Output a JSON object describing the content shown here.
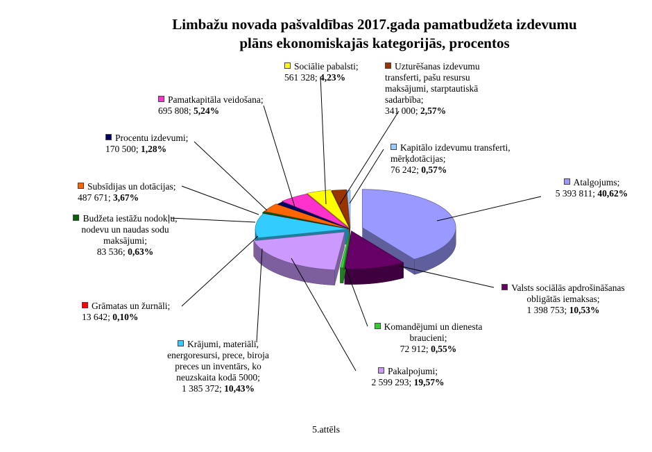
{
  "title_lines": [
    "Limbažu novada pašvaldības 2017.gada pamatbudžeta izdevumu",
    "plāns ekonomiskajās kategorijās, procentos"
  ],
  "caption": "5.attēls",
  "chart_data": {
    "type": "pie",
    "title": "Limbažu novada pašvaldības 2017.gada pamatbudžeta izdevumu plāns ekonomiskajās kategorijās, procentos",
    "three_d": true,
    "exploded": true,
    "legend": "none (data labels with leader lines)",
    "slices": [
      {
        "name": "Atalgojums",
        "value": 5393811,
        "value_text": "5 393 811",
        "percent": 40.62,
        "percent_text": "40,62%",
        "color": "#9999ff"
      },
      {
        "name": "Valsts sociālās apdrošināšanas obligātās iemaksas",
        "value": 1398753,
        "value_text": "1 398 753",
        "percent": 10.53,
        "percent_text": "10,53%",
        "color": "#660066"
      },
      {
        "name": "Komandējumi un dienesta braucieni",
        "value": 72912,
        "value_text": "72 912",
        "percent": 0.55,
        "percent_text": "0,55%",
        "color": "#33cc33"
      },
      {
        "name": "Pakalpojumi",
        "value": 2599293,
        "value_text": "2 599 293",
        "percent": 19.57,
        "percent_text": "19,57%",
        "color": "#cc99ff"
      },
      {
        "name": "Krājumi, materiāli, energoresursi, prece, biroja preces un inventārs, ko neuzskaita kodā 5000",
        "value": 1385372,
        "value_text": "1 385 372",
        "percent": 10.43,
        "percent_text": "10,43%",
        "color": "#33ccff"
      },
      {
        "name": "Grāmatas un žurnāli",
        "value": 13642,
        "value_text": "13 642",
        "percent": 0.1,
        "percent_text": "0,10%",
        "color": "#ff0000"
      },
      {
        "name": "Budžeta iestāžu nodokļu, nodevu un naudas sodu maksājumi",
        "value": 83536,
        "value_text": "83 536",
        "percent": 0.63,
        "percent_text": "0,63%",
        "color": "#006600"
      },
      {
        "name": "Subsīdijas un dotācijas",
        "value": 487671,
        "value_text": "487 671",
        "percent": 3.67,
        "percent_text": "3,67%",
        "color": "#ff6600"
      },
      {
        "name": "Procentu izdevumi",
        "value": 170500,
        "value_text": "170 500",
        "percent": 1.28,
        "percent_text": "1,28%",
        "color": "#000066"
      },
      {
        "name": "Pamatkapitāla veidošana",
        "value": 695808,
        "value_text": "695 808",
        "percent": 5.24,
        "percent_text": "5,24%",
        "color": "#ff33cc"
      },
      {
        "name": "Sociālie pabalsti",
        "value": 561328,
        "value_text": "561 328",
        "percent": 4.23,
        "percent_text": "4,23%",
        "color": "#ffff00"
      },
      {
        "name": "Uzturēšanas izdevumu transferti, pašu resursu maksājumi, starptautiskā sadarbība",
        "value": 341000,
        "value_text": "341 000",
        "percent": 2.57,
        "percent_text": "2,57%",
        "color": "#993300"
      },
      {
        "name": "Kapitālo izdevumu transferti, mērķdotācijas",
        "value": 76242,
        "value_text": "76 242",
        "percent": 0.57,
        "percent_text": "0,57%",
        "color": "#99ccff"
      }
    ]
  }
}
